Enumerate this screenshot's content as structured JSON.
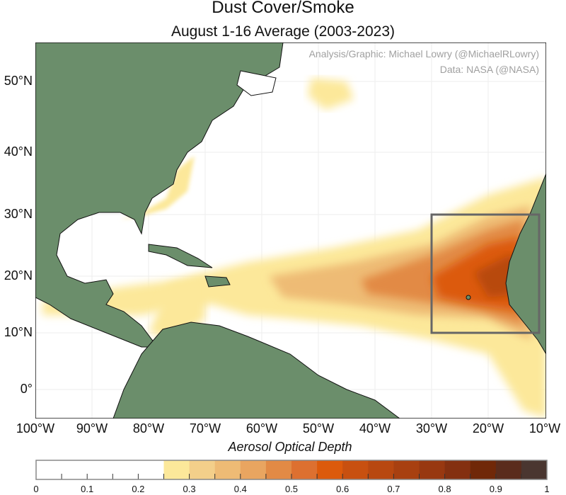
{
  "title": "Dust Cover/Smoke",
  "subtitle": "August 1-16 Average (2003-2023)",
  "credits": {
    "analysis": "Analysis/Graphic: Michael Lowry (@MichaelRLowry)",
    "data": "Data: NASA (@NASA)"
  },
  "lat_labels": [
    "50°N",
    "40°N",
    "30°N",
    "20°N",
    "10°N",
    "0°"
  ],
  "lon_labels": [
    "100°W",
    "90°W",
    "80°W",
    "70°W",
    "60°W",
    "50°W",
    "40°W",
    "30°W",
    "20°W",
    "10°W"
  ],
  "highlight_box": {
    "lon_range": [
      -30,
      -11
    ],
    "lat_range": [
      10,
      30
    ]
  },
  "colorbar": {
    "title": "Aerosol Optical Depth",
    "tick_labels": [
      "0",
      "0.1",
      "0.2",
      "0.3",
      "0.4",
      "0.5",
      "0.6",
      "0.7",
      "0.8",
      "0.9",
      "1"
    ],
    "range": [
      0,
      1
    ],
    "step": 0.05,
    "colors": [
      "#ffffff",
      "#ffffff",
      "#ffffff",
      "#ffffff",
      "#ffffff",
      "#fce89a",
      "#f3cf8a",
      "#eebb75",
      "#e9a560",
      "#e28a45",
      "#dd7030",
      "#dc5a0c",
      "#c85010",
      "#b84810",
      "#a84010",
      "#983810",
      "#843010",
      "#702808",
      "#5a2c1c",
      "#4a3630"
    ]
  },
  "colors": {
    "land": "#6b8e6b",
    "border": "#111111"
  }
}
